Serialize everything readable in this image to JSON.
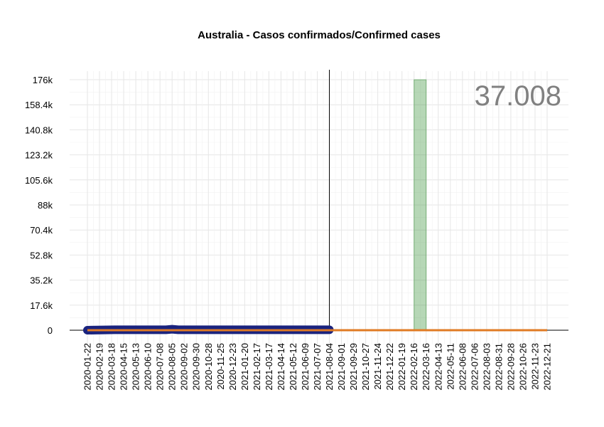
{
  "chart_data": {
    "type": "line",
    "title": "Australia - Casos confirmados/Confirmed cases",
    "xlabel": "",
    "ylabel": "",
    "ylim": [
      0,
      176000
    ],
    "y_ticks": [
      "0",
      "17.6k",
      "35.2k",
      "52.8k",
      "70.4k",
      "88k",
      "105.6k",
      "123.2k",
      "140.8k",
      "158.4k",
      "176k"
    ],
    "x_ticks": [
      "2020-01-22",
      "2020-02-19",
      "2020-03-18",
      "2020-04-15",
      "2020-05-13",
      "2020-06-10",
      "2020-07-08",
      "2020-08-05",
      "2020-09-02",
      "2020-09-30",
      "2020-10-28",
      "2020-11-25",
      "2020-12-23",
      "2021-01-20",
      "2021-02-17",
      "2021-03-17",
      "2021-04-14",
      "2021-05-12",
      "2021-06-09",
      "2021-07-07",
      "2021-08-04",
      "2021-09-01",
      "2021-09-29",
      "2021-10-27",
      "2021-11-24",
      "2021-12-22",
      "2022-01-19",
      "2022-02-16",
      "2022-03-16",
      "2022-04-13",
      "2022-05-11",
      "2022-06-08",
      "2022-07-06",
      "2022-08-03",
      "2022-08-31",
      "2022-09-28",
      "2022-10-26",
      "2022-11-23",
      "2022-12-21"
    ],
    "observed_range": [
      "2020-01-22",
      "2021-08-04"
    ],
    "forecast_range": [
      "2021-08-04",
      "2022-12-21"
    ],
    "highlight_range": [
      "2022-02-16",
      "2022-03-16"
    ],
    "cutoff_date": "2021-08-04",
    "big_number": "37.008",
    "series": [
      {
        "color": "#1a237e",
        "x": [
          "2020-01-22",
          "2020-03-25",
          "2020-07-22",
          "2020-08-05",
          "2020-08-19",
          "2021-08-04"
        ],
        "values": [
          0,
          300,
          300,
          700,
          300,
          300
        ]
      },
      {
        "color": "#e07b24",
        "x": [
          "2020-01-22",
          "2022-12-21"
        ],
        "values": [
          0,
          0
        ]
      }
    ],
    "grid": true,
    "colors": {
      "observed": "#1a237e",
      "forecast": "#e07b24",
      "highlight": "#2e8b2e",
      "big_number": "#808080"
    }
  }
}
